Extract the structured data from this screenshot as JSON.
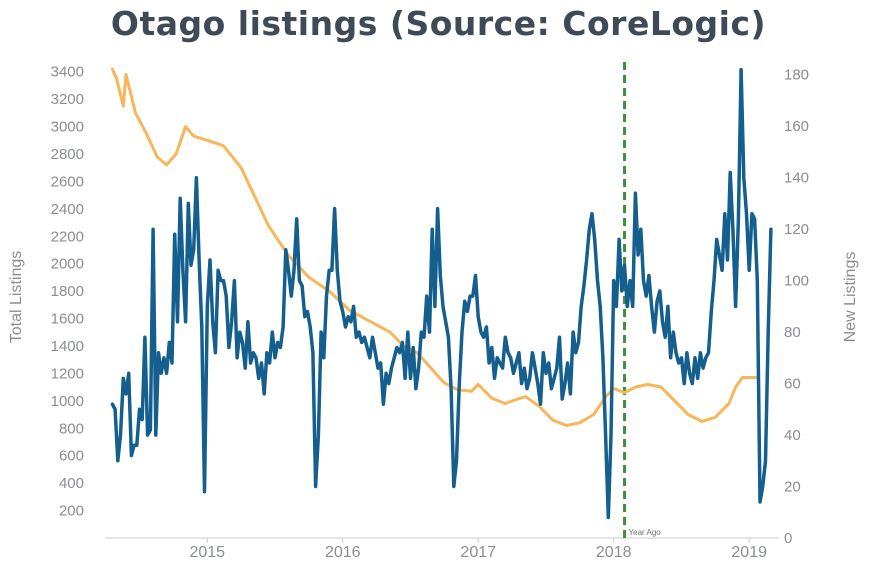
{
  "chart_data": {
    "type": "line",
    "title": "Otago listings (Source: CoreLogic)",
    "ylabel_left": "Total Listings",
    "ylabel_right": "New Listings",
    "x_ticks": [
      2015,
      2016,
      2017,
      2018,
      2019
    ],
    "xlim": [
      2014.26,
      2019.22
    ],
    "ylim_left": [
      0,
      3500
    ],
    "ylim_right": [
      0,
      186.5
    ],
    "y_ticks_left": [
      200,
      400,
      600,
      800,
      1000,
      1200,
      1400,
      1600,
      1800,
      2000,
      2200,
      2400,
      2600,
      2800,
      3000,
      3200,
      3400
    ],
    "y_ticks_right": [
      0,
      20,
      40,
      60,
      80,
      100,
      120,
      140,
      160,
      180
    ],
    "marker": {
      "x": 2018.08,
      "label": "Year Ago",
      "color": "#3e8f3a"
    },
    "series": [
      {
        "axis": "left",
        "color": "#f8b65a",
        "points": [
          [
            2014.3,
            3420
          ],
          [
            2014.33,
            3350
          ],
          [
            2014.38,
            3150
          ],
          [
            2014.4,
            3380
          ],
          [
            2014.47,
            3100
          ],
          [
            2014.55,
            2950
          ],
          [
            2014.63,
            2780
          ],
          [
            2014.7,
            2720
          ],
          [
            2014.77,
            2800
          ],
          [
            2014.84,
            3000
          ],
          [
            2014.9,
            2930
          ],
          [
            2015.0,
            2900
          ],
          [
            2015.12,
            2860
          ],
          [
            2015.25,
            2700
          ],
          [
            2015.35,
            2490
          ],
          [
            2015.45,
            2280
          ],
          [
            2015.6,
            2060
          ],
          [
            2015.75,
            1900
          ],
          [
            2015.9,
            1800
          ],
          [
            2016.05,
            1660
          ],
          [
            2016.2,
            1580
          ],
          [
            2016.35,
            1500
          ],
          [
            2016.45,
            1400
          ],
          [
            2016.55,
            1350
          ],
          [
            2016.65,
            1240
          ],
          [
            2016.75,
            1130
          ],
          [
            2016.85,
            1080
          ],
          [
            2016.95,
            1070
          ],
          [
            2017.0,
            1120
          ],
          [
            2017.1,
            1020
          ],
          [
            2017.2,
            980
          ],
          [
            2017.28,
            1010
          ],
          [
            2017.35,
            1030
          ],
          [
            2017.45,
            960
          ],
          [
            2017.55,
            860
          ],
          [
            2017.65,
            820
          ],
          [
            2017.75,
            840
          ],
          [
            2017.85,
            900
          ],
          [
            2017.95,
            1040
          ],
          [
            2018.0,
            1090
          ],
          [
            2018.08,
            1060
          ],
          [
            2018.16,
            1100
          ],
          [
            2018.25,
            1120
          ],
          [
            2018.35,
            1100
          ],
          [
            2018.45,
            1000
          ],
          [
            2018.55,
            900
          ],
          [
            2018.65,
            850
          ],
          [
            2018.75,
            880
          ],
          [
            2018.85,
            980
          ],
          [
            2018.9,
            1100
          ],
          [
            2018.95,
            1170
          ],
          [
            2019.05,
            1170
          ]
        ]
      },
      {
        "axis": "right",
        "color": "#155f8e",
        "points": [
          [
            2014.3,
            52
          ],
          [
            2014.32,
            50
          ],
          [
            2014.34,
            30
          ],
          [
            2014.36,
            40
          ],
          [
            2014.38,
            62
          ],
          [
            2014.4,
            56
          ],
          [
            2014.42,
            64
          ],
          [
            2014.44,
            32
          ],
          [
            2014.46,
            36
          ],
          [
            2014.48,
            36
          ],
          [
            2014.5,
            50
          ],
          [
            2014.52,
            46
          ],
          [
            2014.54,
            78
          ],
          [
            2014.56,
            40
          ],
          [
            2014.58,
            42
          ],
          [
            2014.6,
            120
          ],
          [
            2014.62,
            40
          ],
          [
            2014.64,
            72
          ],
          [
            2014.66,
            64
          ],
          [
            2014.68,
            70
          ],
          [
            2014.7,
            64
          ],
          [
            2014.72,
            76
          ],
          [
            2014.74,
            68
          ],
          [
            2014.76,
            118
          ],
          [
            2014.78,
            84
          ],
          [
            2014.8,
            132
          ],
          [
            2014.82,
            104
          ],
          [
            2014.84,
            84
          ],
          [
            2014.86,
            130
          ],
          [
            2014.88,
            106
          ],
          [
            2014.9,
            112
          ],
          [
            2014.92,
            140
          ],
          [
            2014.94,
            108
          ],
          [
            2014.96,
            82
          ],
          [
            2014.98,
            18
          ],
          [
            2015.0,
            90
          ],
          [
            2015.02,
            108
          ],
          [
            2015.04,
            84
          ],
          [
            2015.06,
            72
          ],
          [
            2015.08,
            104
          ],
          [
            2015.1,
            100
          ],
          [
            2015.12,
            100
          ],
          [
            2015.14,
            94
          ],
          [
            2015.16,
            74
          ],
          [
            2015.18,
            84
          ],
          [
            2015.2,
            100
          ],
          [
            2015.22,
            70
          ],
          [
            2015.24,
            80
          ],
          [
            2015.26,
            76
          ],
          [
            2015.28,
            66
          ],
          [
            2015.3,
            84
          ],
          [
            2015.32,
            68
          ],
          [
            2015.34,
            72
          ],
          [
            2015.36,
            70
          ],
          [
            2015.38,
            62
          ],
          [
            2015.4,
            68
          ],
          [
            2015.42,
            56
          ],
          [
            2015.44,
            72
          ],
          [
            2015.46,
            68
          ],
          [
            2015.48,
            80
          ],
          [
            2015.5,
            70
          ],
          [
            2015.52,
            76
          ],
          [
            2015.54,
            74
          ],
          [
            2015.56,
            82
          ],
          [
            2015.58,
            112
          ],
          [
            2015.6,
            104
          ],
          [
            2015.62,
            94
          ],
          [
            2015.64,
            104
          ],
          [
            2015.66,
            124
          ],
          [
            2015.68,
            100
          ],
          [
            2015.7,
            98
          ],
          [
            2015.72,
            86
          ],
          [
            2015.74,
            88
          ],
          [
            2015.76,
            82
          ],
          [
            2015.78,
            72
          ],
          [
            2015.8,
            20
          ],
          [
            2015.82,
            40
          ],
          [
            2015.84,
            80
          ],
          [
            2015.86,
            70
          ],
          [
            2015.88,
            94
          ],
          [
            2015.9,
            104
          ],
          [
            2015.92,
            104
          ],
          [
            2015.94,
            128
          ],
          [
            2015.96,
            104
          ],
          [
            2015.98,
            92
          ],
          [
            2016.0,
            88
          ],
          [
            2016.02,
            82
          ],
          [
            2016.04,
            86
          ],
          [
            2016.06,
            84
          ],
          [
            2016.08,
            90
          ],
          [
            2016.1,
            78
          ],
          [
            2016.12,
            80
          ],
          [
            2016.14,
            76
          ],
          [
            2016.16,
            78
          ],
          [
            2016.18,
            74
          ],
          [
            2016.2,
            70
          ],
          [
            2016.22,
            78
          ],
          [
            2016.24,
            72
          ],
          [
            2016.26,
            66
          ],
          [
            2016.28,
            68
          ],
          [
            2016.3,
            52
          ],
          [
            2016.32,
            64
          ],
          [
            2016.34,
            60
          ],
          [
            2016.36,
            66
          ],
          [
            2016.38,
            70
          ],
          [
            2016.4,
            74
          ],
          [
            2016.42,
            72
          ],
          [
            2016.44,
            76
          ],
          [
            2016.46,
            62
          ],
          [
            2016.48,
            80
          ],
          [
            2016.5,
            62
          ],
          [
            2016.52,
            74
          ],
          [
            2016.54,
            58
          ],
          [
            2016.56,
            66
          ],
          [
            2016.58,
            80
          ],
          [
            2016.6,
            78
          ],
          [
            2016.62,
            94
          ],
          [
            2016.64,
            80
          ],
          [
            2016.66,
            120
          ],
          [
            2016.68,
            90
          ],
          [
            2016.7,
            128
          ],
          [
            2016.72,
            102
          ],
          [
            2016.74,
            90
          ],
          [
            2016.76,
            84
          ],
          [
            2016.78,
            78
          ],
          [
            2016.8,
            58
          ],
          [
            2016.82,
            20
          ],
          [
            2016.84,
            30
          ],
          [
            2016.86,
            60
          ],
          [
            2016.88,
            80
          ],
          [
            2016.9,
            92
          ],
          [
            2016.92,
            88
          ],
          [
            2016.94,
            94
          ],
          [
            2016.96,
            94
          ],
          [
            2016.98,
            102
          ],
          [
            2017.0,
            86
          ],
          [
            2017.02,
            80
          ],
          [
            2017.04,
            78
          ],
          [
            2017.06,
            82
          ],
          [
            2017.08,
            68
          ],
          [
            2017.1,
            74
          ],
          [
            2017.12,
            62
          ],
          [
            2017.14,
            70
          ],
          [
            2017.16,
            68
          ],
          [
            2017.18,
            66
          ],
          [
            2017.2,
            78
          ],
          [
            2017.22,
            72
          ],
          [
            2017.24,
            70
          ],
          [
            2017.26,
            64
          ],
          [
            2017.28,
            68
          ],
          [
            2017.3,
            72
          ],
          [
            2017.32,
            60
          ],
          [
            2017.34,
            66
          ],
          [
            2017.36,
            58
          ],
          [
            2017.38,
            62
          ],
          [
            2017.4,
            72
          ],
          [
            2017.42,
            66
          ],
          [
            2017.44,
            60
          ],
          [
            2017.46,
            52
          ],
          [
            2017.48,
            72
          ],
          [
            2017.5,
            64
          ],
          [
            2017.52,
            68
          ],
          [
            2017.54,
            58
          ],
          [
            2017.56,
            62
          ],
          [
            2017.58,
            66
          ],
          [
            2017.6,
            78
          ],
          [
            2017.62,
            54
          ],
          [
            2017.64,
            60
          ],
          [
            2017.66,
            68
          ],
          [
            2017.68,
            56
          ],
          [
            2017.7,
            80
          ],
          [
            2017.72,
            72
          ],
          [
            2017.74,
            76
          ],
          [
            2017.76,
            90
          ],
          [
            2017.78,
            98
          ],
          [
            2017.8,
            108
          ],
          [
            2017.82,
            120
          ],
          [
            2017.84,
            126
          ],
          [
            2017.86,
            116
          ],
          [
            2017.88,
            100
          ],
          [
            2017.9,
            90
          ],
          [
            2017.92,
            70
          ],
          [
            2017.94,
            40
          ],
          [
            2017.96,
            8
          ],
          [
            2017.98,
            40
          ],
          [
            2018.0,
            100
          ],
          [
            2018.02,
            90
          ],
          [
            2018.04,
            116
          ],
          [
            2018.06,
            96
          ],
          [
            2018.08,
            106
          ],
          [
            2018.1,
            90
          ],
          [
            2018.12,
            100
          ],
          [
            2018.14,
            90
          ],
          [
            2018.16,
            134
          ],
          [
            2018.18,
            110
          ],
          [
            2018.2,
            120
          ],
          [
            2018.22,
            100
          ],
          [
            2018.24,
            94
          ],
          [
            2018.26,
            102
          ],
          [
            2018.28,
            90
          ],
          [
            2018.3,
            80
          ],
          [
            2018.32,
            92
          ],
          [
            2018.34,
            96
          ],
          [
            2018.36,
            84
          ],
          [
            2018.38,
            78
          ],
          [
            2018.4,
            90
          ],
          [
            2018.42,
            70
          ],
          [
            2018.44,
            80
          ],
          [
            2018.46,
            72
          ],
          [
            2018.48,
            68
          ],
          [
            2018.5,
            70
          ],
          [
            2018.52,
            60
          ],
          [
            2018.54,
            72
          ],
          [
            2018.56,
            64
          ],
          [
            2018.58,
            60
          ],
          [
            2018.6,
            70
          ],
          [
            2018.62,
            62
          ],
          [
            2018.64,
            72
          ],
          [
            2018.66,
            66
          ],
          [
            2018.68,
            70
          ],
          [
            2018.7,
            72
          ],
          [
            2018.72,
            88
          ],
          [
            2018.74,
            100
          ],
          [
            2018.76,
            116
          ],
          [
            2018.78,
            110
          ],
          [
            2018.8,
            104
          ],
          [
            2018.82,
            126
          ],
          [
            2018.84,
            108
          ],
          [
            2018.86,
            142
          ],
          [
            2018.88,
            120
          ],
          [
            2018.9,
            90
          ],
          [
            2018.92,
            124
          ],
          [
            2018.94,
            182
          ],
          [
            2018.96,
            140
          ],
          [
            2018.98,
            126
          ],
          [
            2019.0,
            104
          ],
          [
            2019.02,
            126
          ],
          [
            2019.04,
            124
          ],
          [
            2019.06,
            100
          ],
          [
            2019.08,
            14
          ],
          [
            2019.1,
            20
          ],
          [
            2019.12,
            30
          ],
          [
            2019.14,
            80
          ],
          [
            2019.16,
            120
          ]
        ]
      }
    ]
  }
}
